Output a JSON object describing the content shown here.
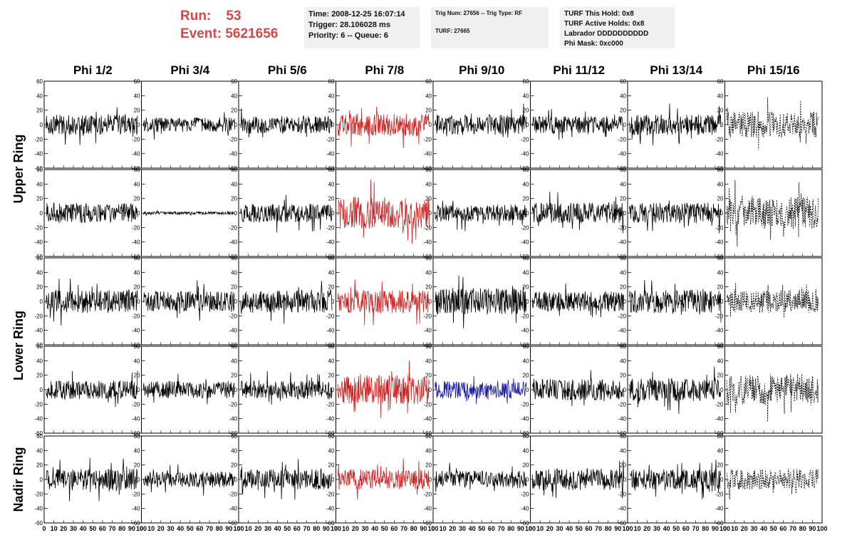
{
  "header": {
    "run_label": "Run:",
    "run_value": "53",
    "event_label": "Event:",
    "event_value": "5621656"
  },
  "info": {
    "time": "Time: 2008-12-25 16:07:14",
    "trigger": "Trigger: 28.106028 ms",
    "priority_queue": "Priority: 6 -- Queue: 6",
    "trig_num_type": "Trig Num: 27656 -- Trig Type: RF",
    "turf": "TURF: 27665",
    "turf_this_hold": "TURF This Hold: 0x8",
    "turf_active_holds": "TURF Active Holds: 0x8",
    "labrador": "Labrador DDDDDDDDDD",
    "phi_mask": "Phi Mask: 0xc000"
  },
  "chart_data": {
    "type": "line",
    "columns": [
      "Phi 1/2",
      "Phi 3/4",
      "Phi 5/6",
      "Phi 7/8",
      "Phi 9/10",
      "Phi 11/12",
      "Phi 13/14",
      "Phi 15/16"
    ],
    "ring_labels": [
      {
        "label": "Upper Ring",
        "rows": [
          0,
          1
        ]
      },
      {
        "label": "Lower Ring",
        "rows": [
          2,
          3
        ]
      },
      {
        "label": "Nadir Ring",
        "rows": [
          4
        ]
      }
    ],
    "xlim": [
      0,
      100
    ],
    "ylim": [
      -60,
      60
    ],
    "x_ticks": [
      0,
      10,
      20,
      30,
      40,
      50,
      60,
      70,
      80,
      90,
      100
    ],
    "y_ticks": [
      -60,
      -40,
      -20,
      0,
      20,
      40,
      60
    ],
    "colors": {
      "normal": "#000000",
      "triggered": "#cc2222",
      "highlight": "#1a1a99"
    },
    "panels": [
      [
        {
          "amp": 14,
          "style": "normal"
        },
        {
          "amp": 10,
          "style": "normal"
        },
        {
          "amp": 12,
          "style": "normal"
        },
        {
          "amp": 16,
          "style": "triggered"
        },
        {
          "amp": 14,
          "style": "normal"
        },
        {
          "amp": 12,
          "style": "normal"
        },
        {
          "amp": 14,
          "style": "normal"
        },
        {
          "amp": 18,
          "style": "dashed"
        }
      ],
      [
        {
          "amp": 14,
          "style": "normal"
        },
        {
          "amp": 2,
          "style": "normal"
        },
        {
          "amp": 13,
          "style": "normal"
        },
        {
          "amp": 22,
          "style": "triggered"
        },
        {
          "amp": 12,
          "style": "normal"
        },
        {
          "amp": 14,
          "style": "normal"
        },
        {
          "amp": 14,
          "style": "normal"
        },
        {
          "amp": 22,
          "style": "dashed"
        }
      ],
      [
        {
          "amp": 16,
          "style": "normal"
        },
        {
          "amp": 14,
          "style": "normal"
        },
        {
          "amp": 16,
          "style": "normal"
        },
        {
          "amp": 16,
          "style": "triggered"
        },
        {
          "amp": 18,
          "style": "normal"
        },
        {
          "amp": 14,
          "style": "normal"
        },
        {
          "amp": 16,
          "style": "normal"
        },
        {
          "amp": 16,
          "style": "dashed"
        }
      ],
      [
        {
          "amp": 13,
          "style": "normal"
        },
        {
          "amp": 12,
          "style": "normal"
        },
        {
          "amp": 13,
          "style": "normal"
        },
        {
          "amp": 20,
          "style": "triggered"
        },
        {
          "amp": 12,
          "style": "highlight"
        },
        {
          "amp": 15,
          "style": "normal"
        },
        {
          "amp": 16,
          "style": "normal"
        },
        {
          "amp": 22,
          "style": "dashed"
        }
      ],
      [
        {
          "amp": 15,
          "style": "normal"
        },
        {
          "amp": 11,
          "style": "normal"
        },
        {
          "amp": 14,
          "style": "normal"
        },
        {
          "amp": 14,
          "style": "triggered"
        },
        {
          "amp": 12,
          "style": "normal"
        },
        {
          "amp": 15,
          "style": "normal"
        },
        {
          "amp": 14,
          "style": "normal"
        },
        {
          "amp": 14,
          "style": "dashed"
        }
      ]
    ]
  }
}
